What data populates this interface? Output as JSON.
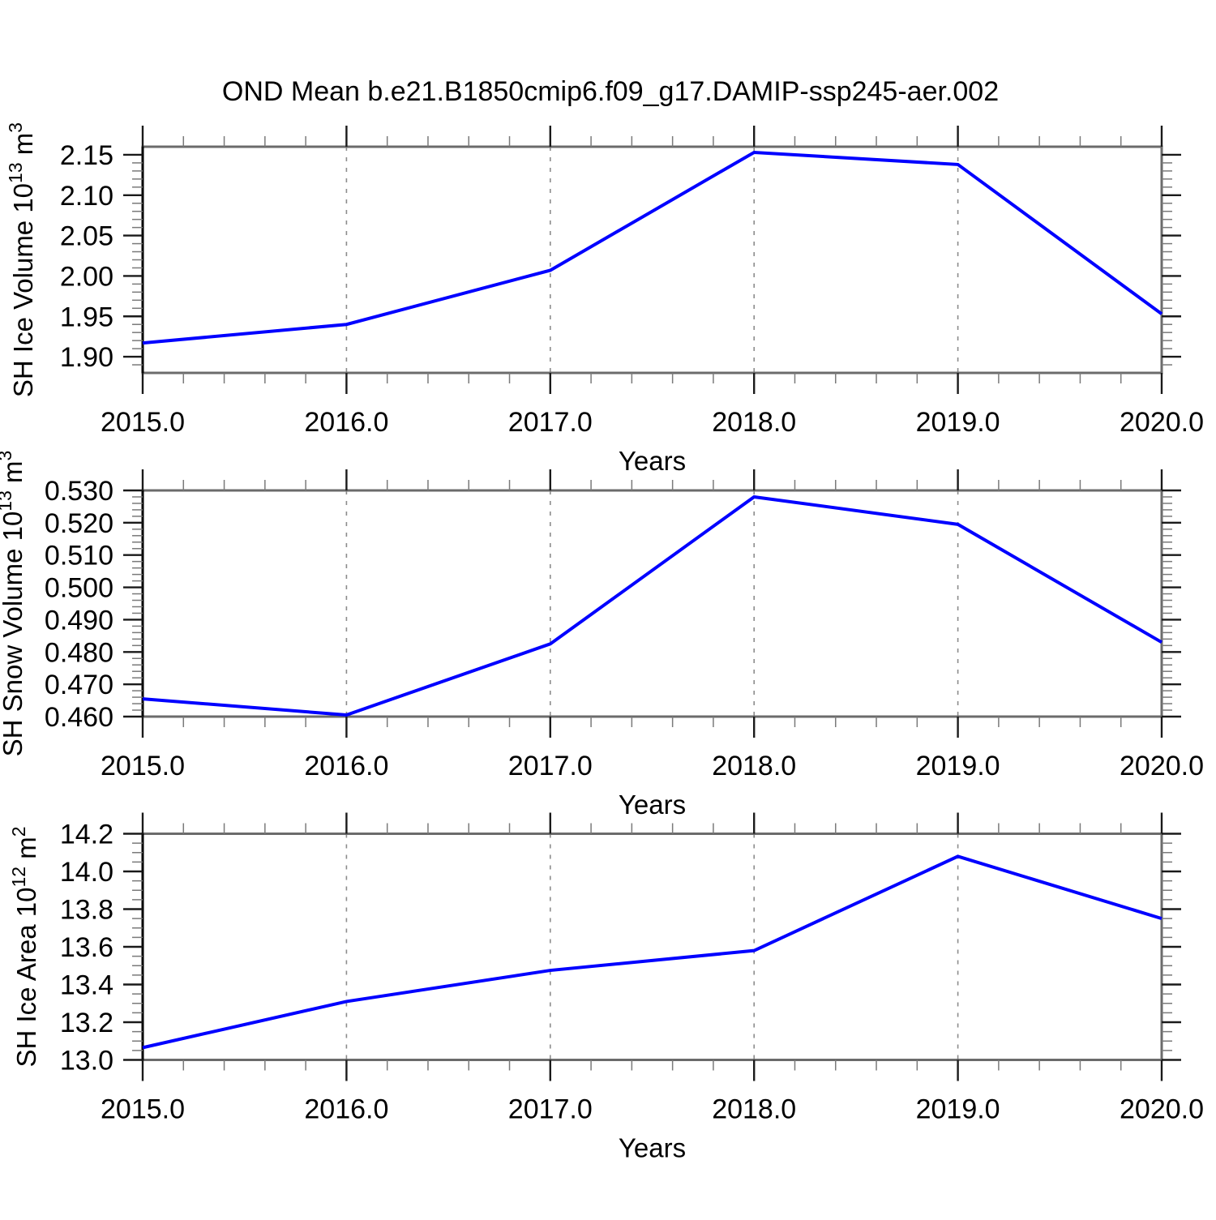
{
  "figure_title": "OND Mean b.e21.B1850cmip6.f09_g17.DAMIP-ssp245-aer.002",
  "xlabel": "Years",
  "x_tick_labels": [
    "2015.0",
    "2016.0",
    "2017.0",
    "2018.0",
    "2019.0",
    "2020.0"
  ],
  "colors": {
    "line": "#0000ff",
    "frame": "#6b6b6b",
    "axis": "#000000",
    "major_tick": "#1a1a1a",
    "minor_tick": "#7a7a7a",
    "grid": "#8c8c8c",
    "text": "#000000",
    "background": "#ffffff"
  },
  "chart_data": [
    {
      "id": "sh-ice-volume",
      "type": "line",
      "x": [
        2015,
        2016,
        2017,
        2018,
        2019,
        2020
      ],
      "series": [
        {
          "name": "SH Ice Volume",
          "values": [
            1.917,
            1.94,
            2.007,
            2.153,
            2.138,
            1.953
          ]
        }
      ],
      "ylabel": "SH Ice Volume 10^13 m^3",
      "ylabel_parts": [
        {
          "text": "SH Ice Volume 10"
        },
        {
          "text": "13",
          "sup": true
        },
        {
          "text": " m"
        },
        {
          "text": "3",
          "sup": true
        }
      ],
      "xlabel": "Years",
      "xlim": [
        2015,
        2020
      ],
      "ylim": [
        1.88,
        2.16
      ],
      "yticks": [
        1.9,
        1.95,
        2.0,
        2.05,
        2.1,
        2.15
      ],
      "ytick_labels": [
        "1.90",
        "1.95",
        "2.00",
        "2.05",
        "2.10",
        "2.15"
      ],
      "y_minor_step": 0.01,
      "x_minor_step": 0.2,
      "grid_x": [
        2016,
        2017,
        2018,
        2019
      ],
      "grid_style": "vertical-dashed",
      "legend": "none"
    },
    {
      "id": "sh-snow-volume",
      "type": "line",
      "x": [
        2015,
        2016,
        2017,
        2018,
        2019,
        2020
      ],
      "series": [
        {
          "name": "SH Snow Volume",
          "values": [
            0.4655,
            0.4605,
            0.4825,
            0.528,
            0.5195,
            0.483
          ]
        }
      ],
      "ylabel": "SH Snow Volume 10^13 m^3",
      "ylabel_parts": [
        {
          "text": "SH Snow Volume 10"
        },
        {
          "text": "13",
          "sup": true
        },
        {
          "text": " m"
        },
        {
          "text": "3",
          "sup": true
        }
      ],
      "xlabel": "Years",
      "xlim": [
        2015,
        2020
      ],
      "ylim": [
        0.46,
        0.53
      ],
      "yticks": [
        0.46,
        0.47,
        0.48,
        0.49,
        0.5,
        0.51,
        0.52,
        0.53
      ],
      "ytick_labels": [
        "0.460",
        "0.470",
        "0.480",
        "0.490",
        "0.500",
        "0.510",
        "0.520",
        "0.530"
      ],
      "y_minor_step": 0.002,
      "x_minor_step": 0.2,
      "grid_x": [
        2016,
        2017,
        2018,
        2019
      ],
      "grid_style": "vertical-dashed",
      "legend": "none"
    },
    {
      "id": "sh-ice-area",
      "type": "line",
      "x": [
        2015,
        2016,
        2017,
        2018,
        2019,
        2020
      ],
      "series": [
        {
          "name": "SH Ice Area",
          "values": [
            13.065,
            13.31,
            13.475,
            13.58,
            14.08,
            13.75
          ]
        }
      ],
      "ylabel": "SH Ice Area 10^12 m^2",
      "ylabel_parts": [
        {
          "text": "SH Ice Area 10"
        },
        {
          "text": "12",
          "sup": true
        },
        {
          "text": " m"
        },
        {
          "text": "2",
          "sup": true
        }
      ],
      "xlabel": "Years",
      "xlim": [
        2015,
        2020
      ],
      "ylim": [
        13.0,
        14.2
      ],
      "yticks": [
        13.0,
        13.2,
        13.4,
        13.6,
        13.8,
        14.0,
        14.2
      ],
      "ytick_labels": [
        "13.0",
        "13.2",
        "13.4",
        "13.6",
        "13.8",
        "14.0",
        "14.2"
      ],
      "y_minor_step": 0.05,
      "x_minor_step": 0.2,
      "grid_x": [
        2016,
        2017,
        2018,
        2019
      ],
      "grid_style": "vertical-dashed",
      "legend": "none"
    }
  ]
}
